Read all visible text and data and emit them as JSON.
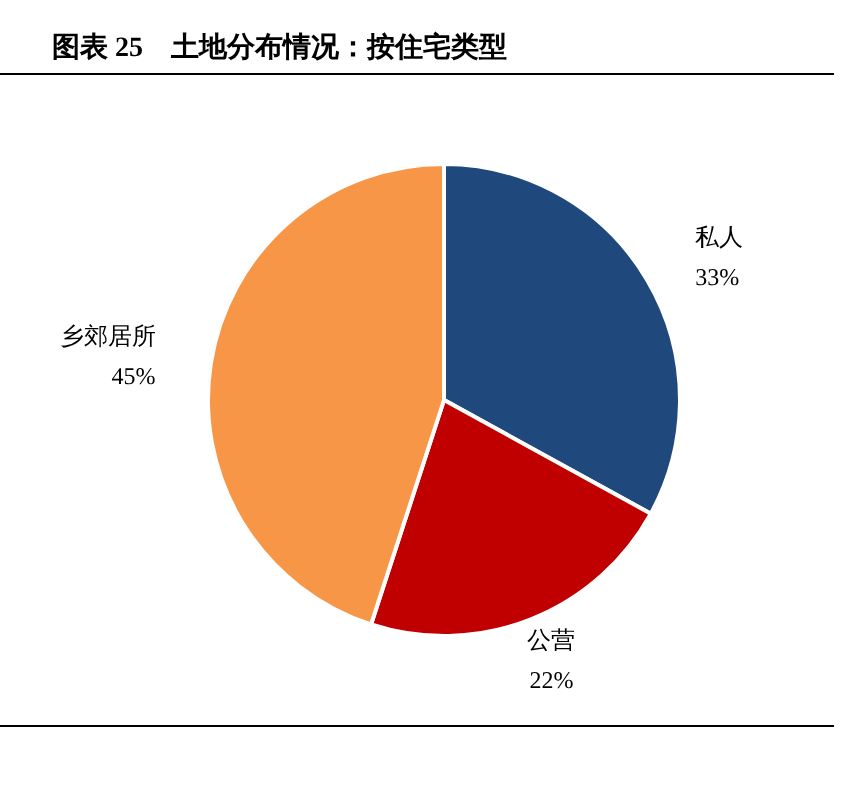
{
  "chart_data": {
    "type": "pie",
    "title": "图表 25　土地分布情况：按住宅类型",
    "categories": [
      "私人",
      "公营",
      "乡郊居所"
    ],
    "values": [
      33,
      22,
      45
    ],
    "colors": [
      "#1f497d",
      "#c00000",
      "#f79646"
    ],
    "value_labels": [
      "33%",
      "22%",
      "45%"
    ]
  }
}
